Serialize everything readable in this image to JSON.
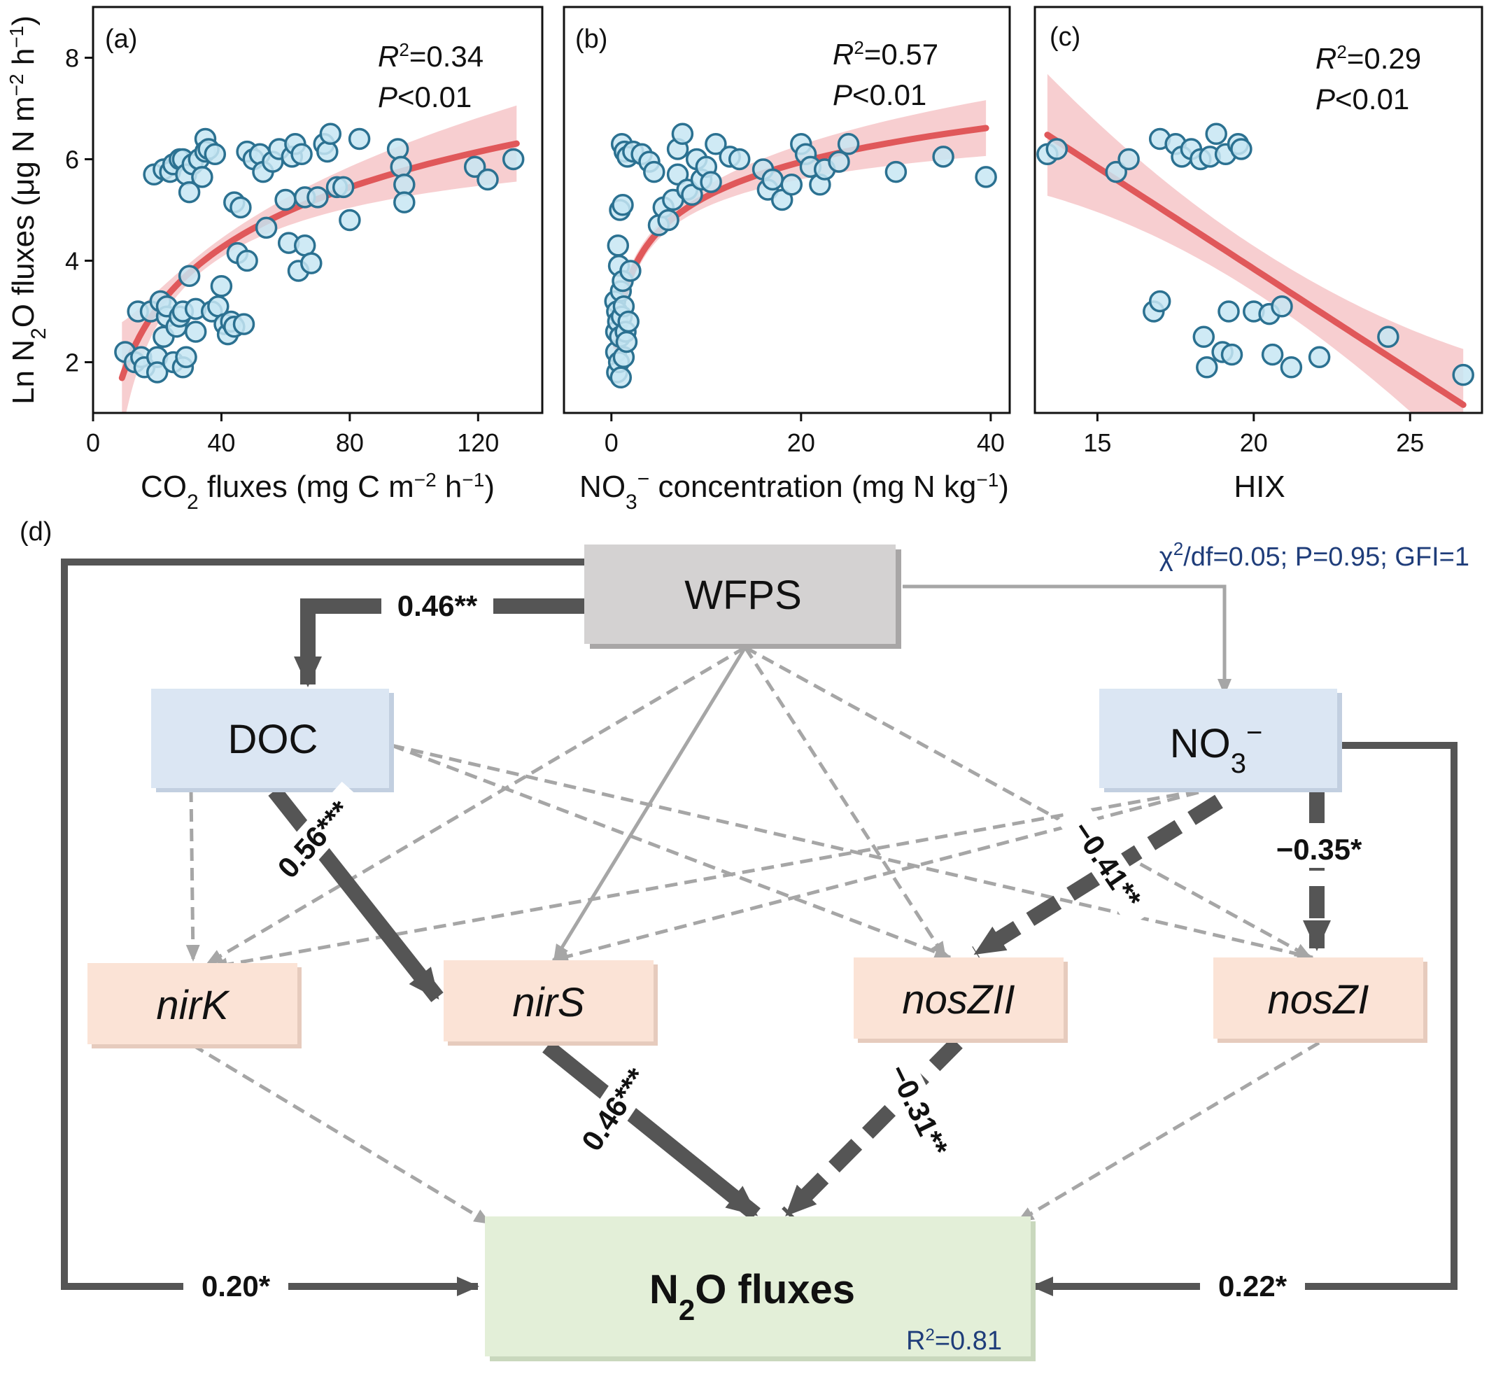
{
  "chart_data": [
    {
      "panel": "(a)",
      "type": "scatter",
      "xlabel_parts": [
        "CO",
        "2",
        " fluxes (mg C m",
        "−2",
        " h",
        "−1",
        ")"
      ],
      "ylabel_parts": [
        "Ln N",
        "2",
        "O fluxes (μg N m",
        "−2",
        " h",
        "−1",
        ")"
      ],
      "xlim": [
        0,
        140
      ],
      "ylim": [
        1,
        9
      ],
      "xticks": [
        "0",
        "40",
        "80",
        "120"
      ],
      "xtick_values": [
        0,
        40,
        80,
        120
      ],
      "yticks": [
        "2",
        "4",
        "6",
        "8"
      ],
      "ytick_values": [
        2,
        4,
        6,
        8
      ],
      "r2_label": "R",
      "r2_value": "=0.34",
      "p_label": "P",
      "p_value": "<0.01",
      "fit": {
        "form": "log",
        "a": -2.09,
        "b": 1.72,
        "x_range": [
          9,
          132
        ],
        "band_at_min": 1.1,
        "band_at_max": 0.75,
        "band_mid": 0.18
      },
      "points": [
        [
          10,
          2.2
        ],
        [
          13,
          2.0
        ],
        [
          14,
          3.0
        ],
        [
          15,
          2.1
        ],
        [
          16,
          1.9
        ],
        [
          18,
          3.0
        ],
        [
          19,
          5.7
        ],
        [
          20,
          2.1
        ],
        [
          20,
          1.8
        ],
        [
          21,
          3.2
        ],
        [
          22,
          5.8
        ],
        [
          22,
          2.5
        ],
        [
          23,
          2.9
        ],
        [
          23,
          3.1
        ],
        [
          24,
          5.75
        ],
        [
          25,
          2.0
        ],
        [
          25,
          5.9
        ],
        [
          26,
          2.7
        ],
        [
          27,
          2.9
        ],
        [
          27,
          6.0
        ],
        [
          28,
          1.9
        ],
        [
          28,
          3.0
        ],
        [
          28,
          6.0
        ],
        [
          29,
          2.1
        ],
        [
          29,
          5.7
        ],
        [
          30,
          3.7
        ],
        [
          30,
          5.35
        ],
        [
          31,
          5.9
        ],
        [
          32,
          3.05
        ],
        [
          32,
          2.6
        ],
        [
          33,
          6.0
        ],
        [
          34,
          5.65
        ],
        [
          35,
          6.4
        ],
        [
          35,
          6.15
        ],
        [
          36,
          6.2
        ],
        [
          37,
          3.0
        ],
        [
          38,
          6.1
        ],
        [
          39,
          3.1
        ],
        [
          40,
          3.5
        ],
        [
          41,
          2.75
        ],
        [
          42,
          2.55
        ],
        [
          43,
          2.8
        ],
        [
          44,
          5.15
        ],
        [
          44,
          2.7
        ],
        [
          45,
          4.15
        ],
        [
          46,
          5.05
        ],
        [
          47,
          2.75
        ],
        [
          48,
          4.0
        ],
        [
          48,
          6.15
        ],
        [
          50,
          6.0
        ],
        [
          52,
          6.1
        ],
        [
          53,
          5.75
        ],
        [
          54,
          4.65
        ],
        [
          56,
          5.95
        ],
        [
          58,
          6.2
        ],
        [
          60,
          5.2
        ],
        [
          61,
          4.35
        ],
        [
          62,
          6.05
        ],
        [
          63,
          6.3
        ],
        [
          64,
          3.8
        ],
        [
          65,
          6.1
        ],
        [
          66,
          5.25
        ],
        [
          66,
          4.3
        ],
        [
          68,
          3.95
        ],
        [
          70,
          5.25
        ],
        [
          72,
          6.3
        ],
        [
          73,
          6.15
        ],
        [
          74,
          6.5
        ],
        [
          76,
          5.45
        ],
        [
          78,
          5.45
        ],
        [
          80,
          4.8
        ],
        [
          83,
          6.4
        ],
        [
          95,
          6.2
        ],
        [
          96,
          5.85
        ],
        [
          97,
          5.5
        ],
        [
          97,
          5.15
        ],
        [
          119,
          5.85
        ],
        [
          123,
          5.6
        ],
        [
          131,
          6.0
        ]
      ]
    },
    {
      "panel": "(b)",
      "type": "scatter",
      "xlabel_parts": [
        "NO",
        "3",
        "−",
        " concentration (mg N kg",
        "−1",
        ")"
      ],
      "xlim": [
        -5,
        42
      ],
      "ylim": [
        1,
        9
      ],
      "xticks": [
        "0",
        "20",
        "40"
      ],
      "xtick_values": [
        0,
        20,
        40
      ],
      "yticks": [],
      "r2_label": "R",
      "r2_value": "=0.57",
      "p_label": "P",
      "p_value": "<0.01",
      "fit": {
        "form": "log",
        "a": 3.0,
        "b": 0.983,
        "x_range": [
          0.5,
          39.5
        ],
        "band_at_min": 0.6,
        "band_at_max": 0.55,
        "band_mid": 0.15
      },
      "points": [
        [
          0.4,
          3.2
        ],
        [
          0.5,
          2.6
        ],
        [
          0.5,
          2.2
        ],
        [
          0.6,
          3.0
        ],
        [
          0.6,
          1.8
        ],
        [
          0.7,
          2.8
        ],
        [
          0.7,
          4.3
        ],
        [
          0.8,
          3.9
        ],
        [
          0.8,
          2.0
        ],
        [
          0.9,
          5.0
        ],
        [
          0.9,
          2.5
        ],
        [
          1.0,
          3.4
        ],
        [
          1.0,
          1.7
        ],
        [
          1.1,
          6.3
        ],
        [
          1.1,
          2.9
        ],
        [
          1.2,
          3.6
        ],
        [
          1.2,
          5.1
        ],
        [
          1.3,
          2.1
        ],
        [
          1.3,
          3.1
        ],
        [
          1.4,
          6.15
        ],
        [
          1.5,
          2.6
        ],
        [
          1.6,
          2.4
        ],
        [
          1.7,
          6.05
        ],
        [
          1.8,
          2.8
        ],
        [
          2.0,
          3.8
        ],
        [
          2.3,
          6.15
        ],
        [
          3.2,
          6.1
        ],
        [
          4.0,
          5.95
        ],
        [
          4.5,
          5.75
        ],
        [
          5.0,
          4.7
        ],
        [
          5.5,
          5.05
        ],
        [
          6.0,
          4.8
        ],
        [
          6.5,
          5.2
        ],
        [
          7.0,
          6.2
        ],
        [
          7.0,
          5.7
        ],
        [
          7.5,
          6.5
        ],
        [
          8.0,
          5.4
        ],
        [
          8.5,
          5.3
        ],
        [
          9.0,
          6.0
        ],
        [
          9.5,
          5.6
        ],
        [
          10.0,
          5.85
        ],
        [
          10.5,
          5.55
        ],
        [
          11.0,
          6.3
        ],
        [
          12.5,
          6.05
        ],
        [
          13.5,
          6.0
        ],
        [
          16.0,
          5.8
        ],
        [
          16.5,
          5.4
        ],
        [
          17.0,
          5.6
        ],
        [
          18.0,
          5.2
        ],
        [
          19.0,
          5.5
        ],
        [
          20.0,
          6.3
        ],
        [
          20.5,
          6.1
        ],
        [
          21.0,
          5.85
        ],
        [
          22.0,
          5.5
        ],
        [
          22.5,
          5.8
        ],
        [
          24.0,
          5.95
        ],
        [
          25.0,
          6.3
        ],
        [
          30.0,
          5.75
        ],
        [
          35.0,
          6.05
        ],
        [
          39.5,
          5.65
        ]
      ]
    },
    {
      "panel": "(c)",
      "type": "scatter",
      "xlabel": "HIX",
      "xlim": [
        13,
        27.3
      ],
      "ylim": [
        1,
        9
      ],
      "xticks": [
        "15",
        "20",
        "25"
      ],
      "xtick_values": [
        15,
        20,
        25
      ],
      "yticks": [],
      "r2_label": "R",
      "r2_value": "=0.29",
      "p_label": "P",
      "p_value": "<0.01",
      "fit": {
        "form": "linear",
        "slope": -0.4,
        "intercept": 11.84,
        "x_range": [
          13.4,
          26.7
        ],
        "band_at_min": 1.2,
        "band_at_max": 1.1,
        "band_mid": 0.45
      },
      "points": [
        [
          13.4,
          6.1
        ],
        [
          13.7,
          6.2
        ],
        [
          15.6,
          5.75
        ],
        [
          16.0,
          6.0
        ],
        [
          16.8,
          3.0
        ],
        [
          17.0,
          3.2
        ],
        [
          17.0,
          6.4
        ],
        [
          17.5,
          6.3
        ],
        [
          17.7,
          6.05
        ],
        [
          18.0,
          6.2
        ],
        [
          18.3,
          6.0
        ],
        [
          18.4,
          2.5
        ],
        [
          18.5,
          1.9
        ],
        [
          18.6,
          6.05
        ],
        [
          18.8,
          6.5
        ],
        [
          19.0,
          2.2
        ],
        [
          19.1,
          6.1
        ],
        [
          19.2,
          3.0
        ],
        [
          19.3,
          2.15
        ],
        [
          19.5,
          6.3
        ],
        [
          19.6,
          6.2
        ],
        [
          20.0,
          3.0
        ],
        [
          20.5,
          2.95
        ],
        [
          20.6,
          2.15
        ],
        [
          20.9,
          3.1
        ],
        [
          21.2,
          1.9
        ],
        [
          22.1,
          2.1
        ],
        [
          24.3,
          2.5
        ],
        [
          26.7,
          1.75
        ]
      ]
    }
  ],
  "panel_d": {
    "label": "(d)",
    "fit_prefix": "χ",
    "fit_sup": "2",
    "fit_suffix": "/df=0.05; P=0.95; GFI=1",
    "nodes": {
      "wfps": "WFPS",
      "doc": "DOC",
      "no3_base": "NO",
      "no3_sub": "3",
      "no3_sup": "−",
      "nirk": "nirK",
      "nirs": "nirS",
      "noszii": "nosZII",
      "noszi": "nosZI",
      "n2o_base": "N",
      "n2o_sub": "2",
      "n2o_rest": "O fluxes",
      "n2o_r2_base": "R",
      "n2o_r2_sup": "2",
      "n2o_r2_val": "=0.81"
    },
    "coefficients": {
      "wfps_doc": "0.46**",
      "doc_nirs": "0.56***",
      "no3_noszii": "−0.41**",
      "no3_noszi": "−0.35*",
      "nirs_n2o": "0.46***",
      "noszii_n2o": "−0.31**",
      "wfps_n2o": "0.20*",
      "no3_n2o": "0.22*"
    },
    "colors": {
      "wfps_fill": "#d4d2d2",
      "doc_fill": "#dbe6f3",
      "no3_fill": "#dbe6f3",
      "gene_fill": "#fbe3d6",
      "n2o_fill": "#e3efd8",
      "strong_arrow": "#555555",
      "weak_arrow": "#a6a6a6",
      "fit_text": "#1f3d7a"
    }
  },
  "colors": {
    "marker_fill": "#c7e6f3",
    "marker_edge": "#2b7191",
    "fit_line": "#e0585a",
    "band": "#f6c5c8"
  }
}
